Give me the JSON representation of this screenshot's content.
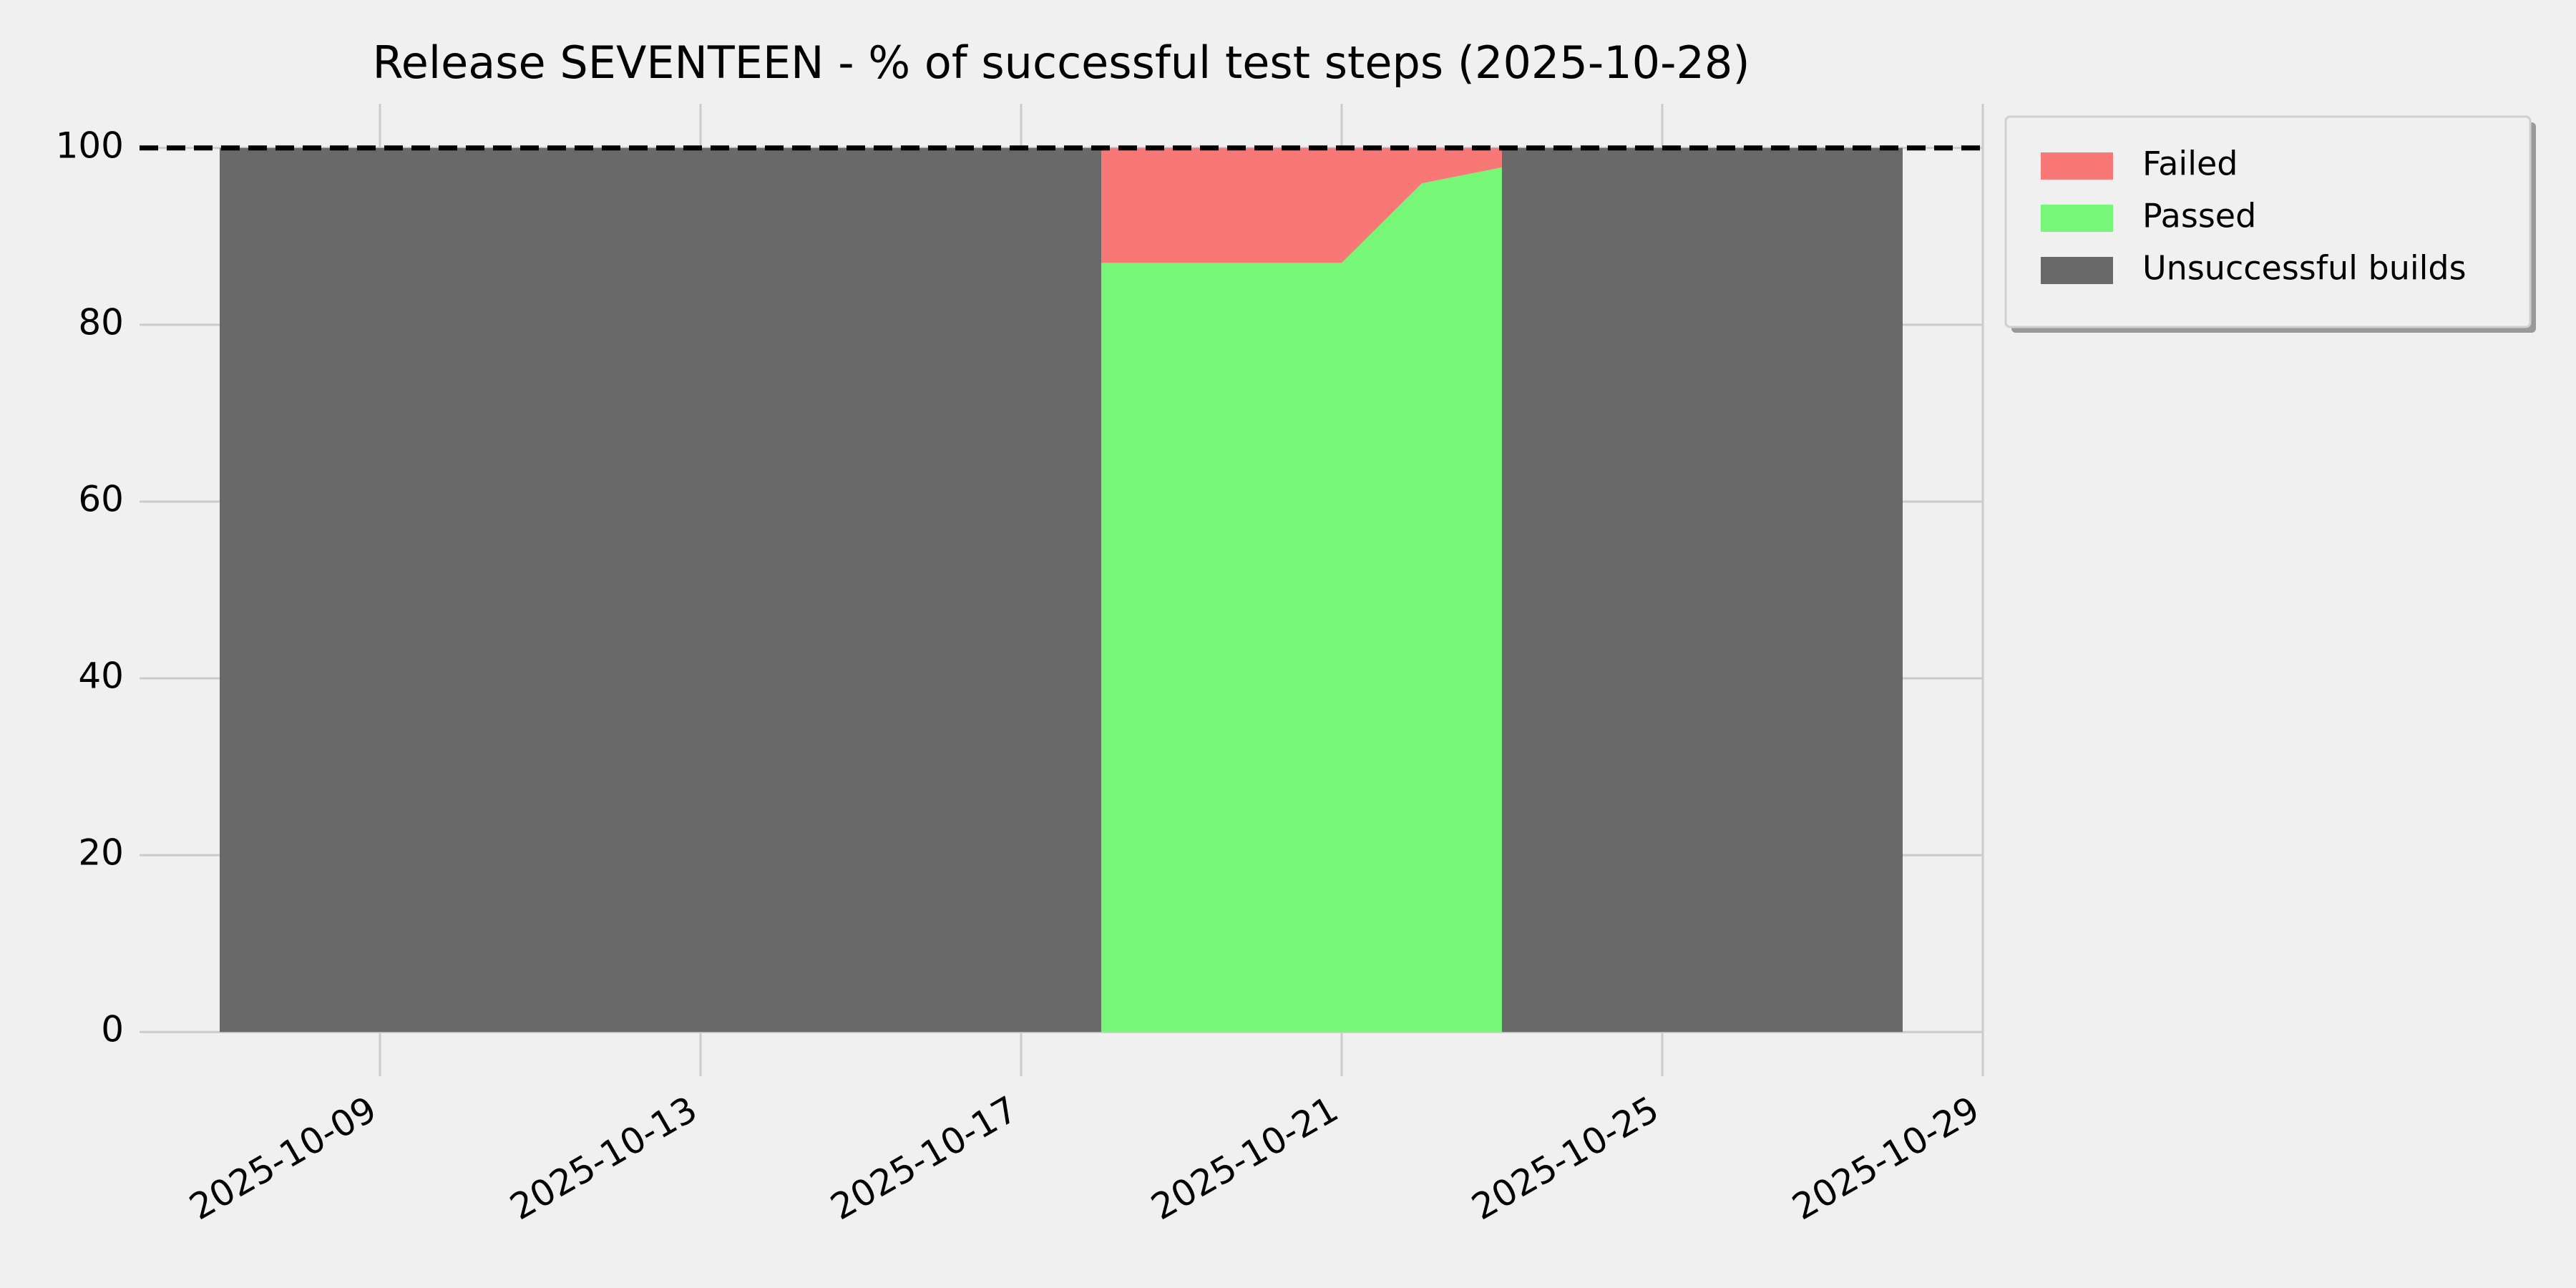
{
  "chart_data": {
    "type": "area",
    "title": "Release SEVENTEEN - % of successful test steps (2025-10-28)",
    "x": [
      "2025-10-07",
      "2025-10-08",
      "2025-10-09",
      "2025-10-10",
      "2025-10-11",
      "2025-10-12",
      "2025-10-13",
      "2025-10-14",
      "2025-10-15",
      "2025-10-16",
      "2025-10-17",
      "2025-10-18",
      "2025-10-19",
      "2025-10-20",
      "2025-10-21",
      "2025-10-22",
      "2025-10-23",
      "2025-10-24",
      "2025-10-25",
      "2025-10-26",
      "2025-10-27",
      "2025-10-28"
    ],
    "series": [
      {
        "name": "Failed",
        "color": "#f87878",
        "stack": "tests",
        "values": [
          null,
          null,
          null,
          null,
          null,
          null,
          null,
          null,
          null,
          null,
          null,
          13,
          13,
          13,
          13,
          4,
          2.2,
          null,
          null,
          null,
          null,
          null
        ]
      },
      {
        "name": "Passed",
        "color": "#77f777",
        "stack": "tests",
        "values": [
          null,
          null,
          null,
          null,
          null,
          null,
          null,
          null,
          null,
          null,
          null,
          87,
          87,
          87,
          87,
          96,
          97.8,
          null,
          null,
          null,
          null,
          null
        ]
      },
      {
        "name": "Unsuccessful builds",
        "color": "#696969",
        "values": [
          100,
          100,
          100,
          100,
          100,
          100,
          100,
          100,
          100,
          100,
          100,
          100,
          null,
          null,
          null,
          null,
          100,
          100,
          100,
          100,
          100,
          100
        ]
      }
    ],
    "xlim": [
      "2025-10-06",
      "2025-10-29"
    ],
    "xticks": [
      "2025-10-09",
      "2025-10-13",
      "2025-10-17",
      "2025-10-21",
      "2025-10-25",
      "2025-10-29"
    ],
    "ylim": [
      -5,
      105
    ],
    "yticks": [
      0,
      20,
      40,
      60,
      80,
      100
    ],
    "hline": 100,
    "grid": true,
    "legend": "outside-upper-right"
  }
}
